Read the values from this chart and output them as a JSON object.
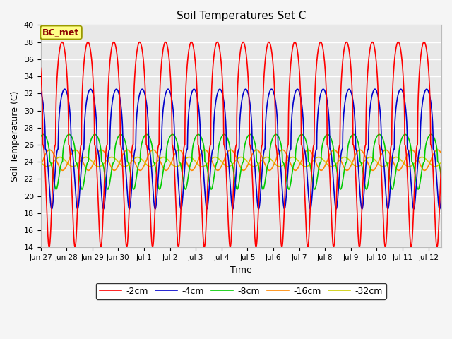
{
  "title": "Soil Temperatures Set C",
  "xlabel": "Time",
  "ylabel": "Soil Temperature (C)",
  "ylim": [
    14,
    40
  ],
  "yticks": [
    14,
    16,
    18,
    20,
    22,
    24,
    26,
    28,
    30,
    32,
    34,
    36,
    38,
    40
  ],
  "annotation": "BC_met",
  "bg_color": "#e8e8e8",
  "fig_bg_color": "#f5f5f5",
  "line_colors": {
    "-2cm": "#ff0000",
    "-4cm": "#0000cc",
    "-8cm": "#00cc00",
    "-16cm": "#ff8800",
    "-32cm": "#cccc00"
  },
  "legend_labels": [
    "-2cm",
    "-4cm",
    "-8cm",
    "-16cm",
    "-32cm"
  ],
  "xtick_labels": [
    "Jun 27",
    "Jun 28",
    "Jun 29",
    "Jun 30",
    "Jul 1",
    "Jul 2",
    "Jul 3",
    "Jul 4",
    "Jul 5",
    "Jul 6",
    "Jul 7",
    "Jul 8",
    "Jul 9",
    "Jul 10",
    "Jul 11",
    "Jul 12"
  ],
  "n_days": 15.5,
  "mean_2cm": 26.0,
  "amp_2cm": 12.0,
  "phase_2cm": 0.58,
  "mean_4cm": 25.5,
  "amp_4cm": 7.0,
  "phase_4cm": 0.68,
  "mean_8cm": 24.0,
  "amp_8cm": 3.2,
  "phase_8cm": 0.85,
  "mean_16cm": 24.2,
  "amp_16cm": 1.2,
  "phase_16cm": 1.1,
  "mean_32cm": 24.0,
  "amp_32cm": 0.55,
  "phase_32cm": 1.5,
  "sharpness": 2.5
}
